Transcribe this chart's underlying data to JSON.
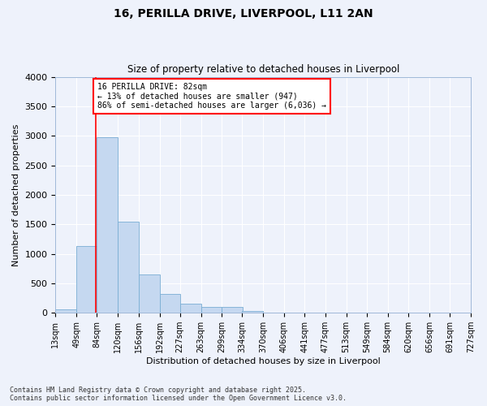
{
  "title1": "16, PERILLA DRIVE, LIVERPOOL, L11 2AN",
  "title2": "Size of property relative to detached houses in Liverpool",
  "xlabel": "Distribution of detached houses by size in Liverpool",
  "ylabel": "Number of detached properties",
  "bin_edges": [
    13,
    49,
    84,
    120,
    156,
    192,
    227,
    263,
    299,
    334,
    370,
    406,
    441,
    477,
    513,
    549,
    584,
    620,
    656,
    691,
    727
  ],
  "bar_heights": [
    60,
    1130,
    2980,
    1540,
    650,
    320,
    160,
    100,
    100,
    30,
    0,
    0,
    0,
    0,
    0,
    0,
    0,
    0,
    0,
    0
  ],
  "bar_color": "#c5d8f0",
  "bar_edgecolor": "#7aaed4",
  "red_line_x": 82,
  "annotation_text": "16 PERILLA DRIVE: 82sqm\n← 13% of detached houses are smaller (947)\n86% of semi-detached houses are larger (6,036) →",
  "annotation_box_color": "white",
  "annotation_box_edgecolor": "red",
  "ylim": [
    0,
    4000
  ],
  "yticks": [
    0,
    500,
    1000,
    1500,
    2000,
    2500,
    3000,
    3500,
    4000
  ],
  "bg_color": "#eef2fb",
  "grid_color": "white",
  "footer1": "Contains HM Land Registry data © Crown copyright and database right 2025.",
  "footer2": "Contains public sector information licensed under the Open Government Licence v3.0."
}
